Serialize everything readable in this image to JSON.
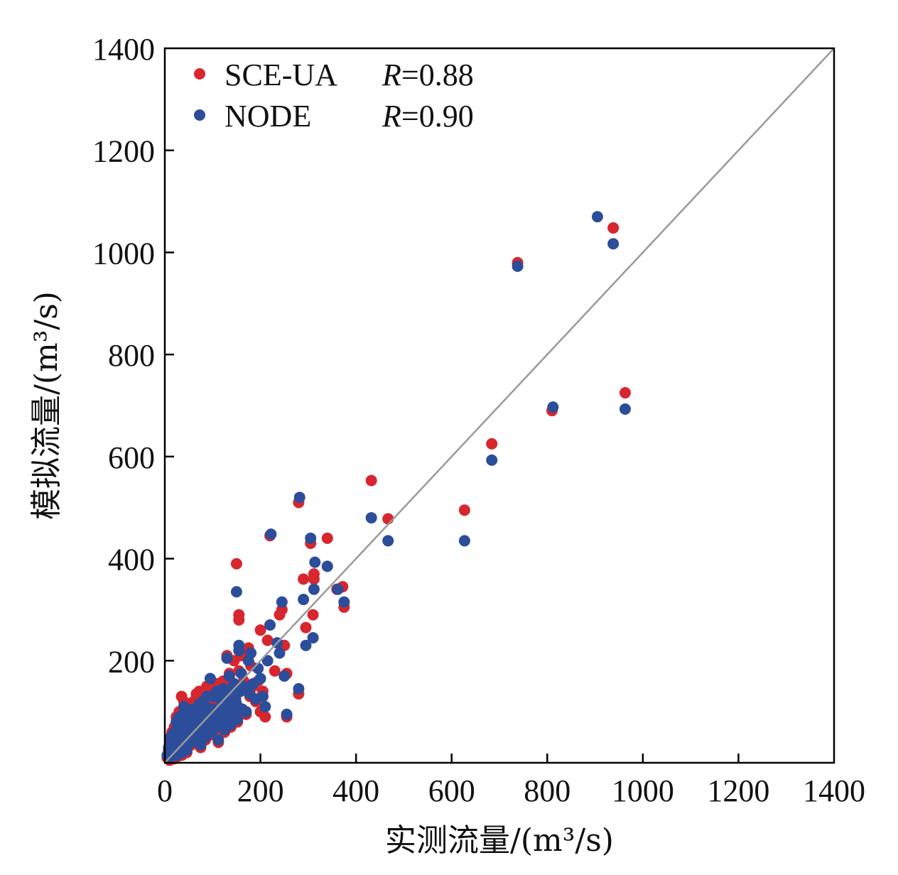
{
  "chart_data": {
    "type": "scatter",
    "title": "",
    "xlabel": "实测流量/(m³/s)",
    "ylabel": "模拟流量/(m³/s)",
    "xlim": [
      0,
      1400
    ],
    "ylim": [
      0,
      1400
    ],
    "xticks": [
      "0",
      "200",
      "400",
      "600",
      "800",
      "1000",
      "1200",
      "1400"
    ],
    "yticks": [
      "200",
      "400",
      "600",
      "800",
      "1000",
      "1200",
      "1400"
    ],
    "grid": false,
    "legend_position": "top-left",
    "reference_line": "1:1",
    "reference_line_color": "#9a9a9a",
    "series": [
      {
        "name": "SCE-UA",
        "r_label": "R",
        "r_value": "=0.88",
        "color": "#d7262d",
        "points": [
          [
            5,
            10
          ],
          [
            8,
            25
          ],
          [
            10,
            5
          ],
          [
            12,
            40
          ],
          [
            14,
            15
          ],
          [
            15,
            60
          ],
          [
            16,
            30
          ],
          [
            18,
            20
          ],
          [
            20,
            70
          ],
          [
            20,
            8
          ],
          [
            22,
            45
          ],
          [
            24,
            90
          ],
          [
            25,
            35
          ],
          [
            26,
            12
          ],
          [
            28,
            55
          ],
          [
            30,
            100
          ],
          [
            30,
            25
          ],
          [
            32,
            75
          ],
          [
            34,
            40
          ],
          [
            35,
            130
          ],
          [
            36,
            15
          ],
          [
            38,
            85
          ],
          [
            40,
            50
          ],
          [
            40,
            120
          ],
          [
            42,
            30
          ],
          [
            44,
            65
          ],
          [
            45,
            95
          ],
          [
            46,
            20
          ],
          [
            48,
            110
          ],
          [
            50,
            45
          ],
          [
            50,
            80
          ],
          [
            52,
            60
          ],
          [
            55,
            35
          ],
          [
            55,
            100
          ],
          [
            58,
            70
          ],
          [
            60,
            50
          ],
          [
            60,
            120
          ],
          [
            62,
            90
          ],
          [
            65,
            40
          ],
          [
            66,
            135
          ],
          [
            68,
            75
          ],
          [
            70,
            55
          ],
          [
            70,
            100
          ],
          [
            72,
            140
          ],
          [
            75,
            30
          ],
          [
            75,
            85
          ],
          [
            78,
            110
          ],
          [
            80,
            60
          ],
          [
            80,
            130
          ],
          [
            82,
            95
          ],
          [
            85,
            45
          ],
          [
            85,
            115
          ],
          [
            88,
            150
          ],
          [
            90,
            70
          ],
          [
            92,
            100
          ],
          [
            95,
            125
          ],
          [
            98,
            55
          ],
          [
            100,
            80
          ],
          [
            100,
            140
          ],
          [
            102,
            110
          ],
          [
            105,
            65
          ],
          [
            108,
            155
          ],
          [
            110,
            90
          ],
          [
            112,
            40
          ],
          [
            115,
            120
          ],
          [
            118,
            75
          ],
          [
            120,
            100
          ],
          [
            122,
            160
          ],
          [
            125,
            60
          ],
          [
            128,
            135
          ],
          [
            130,
            85
          ],
          [
            130,
            210
          ],
          [
            132,
            110
          ],
          [
            135,
            175
          ],
          [
            138,
            70
          ],
          [
            140,
            150
          ],
          [
            142,
            95
          ],
          [
            145,
            200
          ],
          [
            148,
            120
          ],
          [
            150,
            390
          ],
          [
            150,
            110
          ],
          [
            152,
            80
          ],
          [
            155,
            290
          ],
          [
            155,
            280
          ],
          [
            155,
            180
          ],
          [
            158,
            140
          ],
          [
            160,
            210
          ],
          [
            162,
            100
          ],
          [
            165,
            160
          ],
          [
            170,
            95
          ],
          [
            175,
            225
          ],
          [
            178,
            130
          ],
          [
            180,
            190
          ],
          [
            185,
            150
          ],
          [
            190,
            120
          ],
          [
            195,
            160
          ],
          [
            200,
            260
          ],
          [
            200,
            100
          ],
          [
            205,
            140
          ],
          [
            210,
            90
          ],
          [
            215,
            240
          ],
          [
            220,
            445
          ],
          [
            230,
            180
          ],
          [
            240,
            290
          ],
          [
            245,
            300
          ],
          [
            250,
            230
          ],
          [
            255,
            175
          ],
          [
            255,
            90
          ],
          [
            280,
            135
          ],
          [
            280,
            510
          ],
          [
            290,
            360
          ],
          [
            295,
            265
          ],
          [
            305,
            430
          ],
          [
            310,
            290
          ],
          [
            312,
            360
          ],
          [
            312,
            370
          ],
          [
            340,
            440
          ],
          [
            360,
            340
          ],
          [
            372,
            345
          ],
          [
            375,
            305
          ],
          [
            432,
            553
          ],
          [
            467,
            478
          ],
          [
            627,
            495
          ],
          [
            684,
            625
          ],
          [
            738,
            980
          ],
          [
            810,
            690
          ],
          [
            938,
            1048
          ],
          [
            963,
            725
          ]
        ]
      },
      {
        "name": "NODE",
        "r_label": "R",
        "r_value": "=0.90",
        "color": "#2c4d9a",
        "points": [
          [
            5,
            15
          ],
          [
            8,
            30
          ],
          [
            10,
            10
          ],
          [
            12,
            50
          ],
          [
            14,
            20
          ],
          [
            15,
            45
          ],
          [
            16,
            35
          ],
          [
            18,
            25
          ],
          [
            20,
            60
          ],
          [
            22,
            40
          ],
          [
            24,
            80
          ],
          [
            25,
            30
          ],
          [
            26,
            15
          ],
          [
            28,
            65
          ],
          [
            30,
            90
          ],
          [
            30,
            30
          ],
          [
            32,
            55
          ],
          [
            34,
            45
          ],
          [
            35,
            75
          ],
          [
            36,
            20
          ],
          [
            38,
            95
          ],
          [
            40,
            55
          ],
          [
            40,
            110
          ],
          [
            42,
            35
          ],
          [
            44,
            70
          ],
          [
            45,
            85
          ],
          [
            46,
            25
          ],
          [
            48,
            100
          ],
          [
            50,
            50
          ],
          [
            50,
            75
          ],
          [
            52,
            65
          ],
          [
            55,
            40
          ],
          [
            55,
            95
          ],
          [
            58,
            80
          ],
          [
            60,
            55
          ],
          [
            60,
            105
          ],
          [
            62,
            85
          ],
          [
            65,
            45
          ],
          [
            68,
            80
          ],
          [
            70,
            60
          ],
          [
            70,
            95
          ],
          [
            72,
            115
          ],
          [
            75,
            35
          ],
          [
            75,
            90
          ],
          [
            78,
            100
          ],
          [
            80,
            65
          ],
          [
            80,
            120
          ],
          [
            82,
            90
          ],
          [
            85,
            50
          ],
          [
            85,
            110
          ],
          [
            88,
            130
          ],
          [
            90,
            75
          ],
          [
            92,
            105
          ],
          [
            95,
            165
          ],
          [
            98,
            60
          ],
          [
            100,
            85
          ],
          [
            100,
            130
          ],
          [
            102,
            105
          ],
          [
            105,
            70
          ],
          [
            108,
            140
          ],
          [
            110,
            95
          ],
          [
            112,
            45
          ],
          [
            115,
            125
          ],
          [
            118,
            80
          ],
          [
            120,
            105
          ],
          [
            122,
            145
          ],
          [
            125,
            65
          ],
          [
            128,
            130
          ],
          [
            130,
            90
          ],
          [
            130,
            205
          ],
          [
            132,
            115
          ],
          [
            135,
            170
          ],
          [
            138,
            75
          ],
          [
            140,
            145
          ],
          [
            142,
            100
          ],
          [
            145,
            155
          ],
          [
            148,
            125
          ],
          [
            150,
            335
          ],
          [
            150,
            115
          ],
          [
            152,
            85
          ],
          [
            155,
            220
          ],
          [
            155,
            230
          ],
          [
            158,
            140
          ],
          [
            160,
            175
          ],
          [
            162,
            105
          ],
          [
            165,
            150
          ],
          [
            170,
            100
          ],
          [
            175,
            200
          ],
          [
            178,
            135
          ],
          [
            180,
            215
          ],
          [
            185,
            155
          ],
          [
            190,
            125
          ],
          [
            195,
            185
          ],
          [
            200,
            165
          ],
          [
            205,
            130
          ],
          [
            210,
            110
          ],
          [
            215,
            200
          ],
          [
            220,
            270
          ],
          [
            222,
            448
          ],
          [
            235,
            235
          ],
          [
            240,
            215
          ],
          [
            245,
            315
          ],
          [
            250,
            170
          ],
          [
            255,
            95
          ],
          [
            280,
            145
          ],
          [
            282,
            520
          ],
          [
            290,
            320
          ],
          [
            295,
            230
          ],
          [
            305,
            440
          ],
          [
            310,
            245
          ],
          [
            312,
            340
          ],
          [
            314,
            393
          ],
          [
            340,
            385
          ],
          [
            362,
            340
          ],
          [
            375,
            315
          ],
          [
            432,
            480
          ],
          [
            467,
            435
          ],
          [
            627,
            435
          ],
          [
            684,
            593
          ],
          [
            738,
            973
          ],
          [
            812,
            697
          ],
          [
            905,
            1070
          ],
          [
            938,
            1017
          ],
          [
            963,
            693
          ]
        ]
      }
    ]
  }
}
